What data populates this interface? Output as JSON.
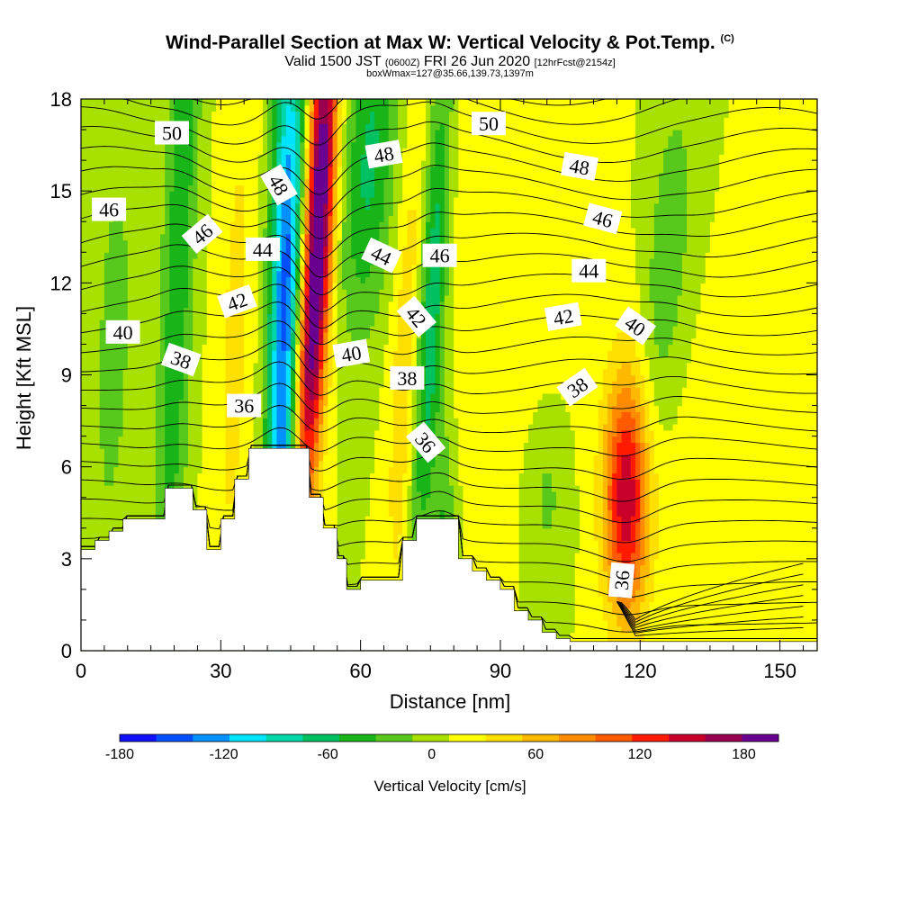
{
  "title": {
    "main": "Wind-Parallel Section at Max W: Vertical Velocity & Pot.Temp.",
    "copyright": "(C)",
    "valid_prefix": "Valid 1500 JST",
    "valid_utc": "(0600Z)",
    "valid_date": "FRI 26 Jun 2020",
    "forecast": "[12hrFcst@2154z]",
    "boxinfo": "boxWmax=127@35.66,139.73,1397m"
  },
  "colors": {
    "palette": [
      "#1010ff",
      "#0050ff",
      "#0090ff",
      "#00e4ff",
      "#00d6a8",
      "#00c060",
      "#18b418",
      "#58c81c",
      "#a8e000",
      "#ffff00",
      "#ffe000",
      "#ffb800",
      "#ff8c00",
      "#ff5a00",
      "#ff1a00",
      "#c8002a",
      "#9a0050",
      "#6a0090"
    ],
    "terrain": "#ffffff",
    "contour": "#000000"
  },
  "chart_data": {
    "type": "heatmap",
    "xlabel": "Distance [nm]",
    "ylabel": "Height [Kft MSL]",
    "xlim": [
      0,
      158
    ],
    "ylim": [
      0,
      18
    ],
    "xticks": [
      0,
      30,
      60,
      90,
      120,
      150
    ],
    "yticks": [
      0,
      3,
      6,
      9,
      12,
      15,
      18
    ],
    "colorbar": {
      "label": "Vertical Velocity [cm/s]",
      "min": -180,
      "max": 200,
      "step": 20,
      "tick_labels": [
        -180,
        -120,
        -60,
        0,
        60,
        120,
        180
      ]
    },
    "vertical_velocity_features": [
      {
        "x": 21,
        "y": 13,
        "sx": 2.5,
        "sy": 12,
        "slope": 0.25,
        "w": -55
      },
      {
        "x": 44,
        "y": 10,
        "sx": 2.6,
        "sy": 8,
        "slope": 0.12,
        "w": -165
      },
      {
        "x": 51,
        "y": 14,
        "sx": 2.2,
        "sy": 5.5,
        "slope": 0.3,
        "w": 200
      },
      {
        "x": 47,
        "y": 8,
        "sx": 2.5,
        "sy": 3,
        "slope": 0.1,
        "w": 70
      },
      {
        "x": 62,
        "y": 16,
        "sx": 4,
        "sy": 4,
        "slope": 0.4,
        "w": -65
      },
      {
        "x": 75,
        "y": 11,
        "sx": 2.2,
        "sy": 6,
        "slope": 0.35,
        "w": -85
      },
      {
        "x": 78,
        "y": 3,
        "sx": 1.6,
        "sy": 3,
        "slope": 0,
        "w": -45
      },
      {
        "x": 70,
        "y": 9,
        "sx": 2.5,
        "sy": 6,
        "slope": 0.3,
        "w": 40
      },
      {
        "x": 33,
        "y": 10,
        "sx": 3,
        "sy": 8,
        "slope": 0.2,
        "w": 25
      },
      {
        "x": 7,
        "y": 10,
        "sx": 4,
        "sy": 7,
        "slope": 0.2,
        "w": -25
      },
      {
        "x": 117,
        "y": 5,
        "sx": 3.4,
        "sy": 2.8,
        "slope": 0,
        "w": 135
      },
      {
        "x": 126,
        "y": 13,
        "sx": 3,
        "sy": 3.5,
        "slope": 0.45,
        "w": -40
      },
      {
        "x": 90,
        "y": 14,
        "sx": 10,
        "sy": 5,
        "slope": 0,
        "w": 18
      },
      {
        "x": 100,
        "y": 5,
        "sx": 3,
        "sy": 2,
        "slope": 0,
        "w": -25
      },
      {
        "x": 140,
        "y": 4,
        "sx": 12,
        "sy": 4,
        "slope": 0,
        "w": 10
      }
    ],
    "terrain_profile": [
      [
        0,
        3.3
      ],
      [
        3,
        3.6
      ],
      [
        6,
        3.9
      ],
      [
        9,
        4.3
      ],
      [
        18,
        5.3
      ],
      [
        24,
        4.6
      ],
      [
        27,
        3.3
      ],
      [
        30,
        4.3
      ],
      [
        33,
        5.6
      ],
      [
        36,
        6.6
      ],
      [
        42,
        6.6
      ],
      [
        45,
        6.6
      ],
      [
        49,
        5.0
      ],
      [
        52,
        4.0
      ],
      [
        55,
        3.0
      ],
      [
        57,
        2.0
      ],
      [
        60,
        2.3
      ],
      [
        63,
        2.3
      ],
      [
        66,
        2.3
      ],
      [
        69,
        3.6
      ],
      [
        72,
        4.3
      ],
      [
        78,
        4.3
      ],
      [
        81,
        3.0
      ],
      [
        84,
        2.6
      ],
      [
        87,
        2.3
      ],
      [
        90,
        2.0
      ],
      [
        93,
        1.3
      ],
      [
        96,
        1.0
      ],
      [
        99,
        0.6
      ],
      [
        102,
        0.4
      ],
      [
        105,
        0.3
      ],
      [
        158,
        0.3
      ]
    ],
    "potential_temperature_labels": [
      {
        "text": "50",
        "x": 19.5,
        "y": 16.9,
        "angle": 0
      },
      {
        "text": "50",
        "x": 87.5,
        "y": 17.2,
        "angle": 0
      },
      {
        "text": "48",
        "x": 42.5,
        "y": 15.2,
        "angle": 60
      },
      {
        "text": "48",
        "x": 65,
        "y": 16.2,
        "angle": -10
      },
      {
        "text": "48",
        "x": 107,
        "y": 15.8,
        "angle": 10
      },
      {
        "text": "46",
        "x": 6,
        "y": 14.4,
        "angle": 0
      },
      {
        "text": "46",
        "x": 26,
        "y": 13.6,
        "angle": -40
      },
      {
        "text": "46",
        "x": 77,
        "y": 12.9,
        "angle": 0
      },
      {
        "text": "46",
        "x": 112,
        "y": 14.1,
        "angle": 15
      },
      {
        "text": "44",
        "x": 39,
        "y": 13.1,
        "angle": 0
      },
      {
        "text": "44",
        "x": 64.5,
        "y": 12.9,
        "angle": 25
      },
      {
        "text": "44",
        "x": 109,
        "y": 12.4,
        "angle": 0
      },
      {
        "text": "42",
        "x": 33.5,
        "y": 11.4,
        "angle": -20
      },
      {
        "text": "42",
        "x": 72,
        "y": 10.9,
        "angle": 50
      },
      {
        "text": "42",
        "x": 103.5,
        "y": 10.9,
        "angle": -10
      },
      {
        "text": "40",
        "x": 9,
        "y": 10.4,
        "angle": 0
      },
      {
        "text": "40",
        "x": 58,
        "y": 9.7,
        "angle": -10
      },
      {
        "text": "40",
        "x": 119,
        "y": 10.6,
        "angle": 35
      },
      {
        "text": "38",
        "x": 21.5,
        "y": 9.5,
        "angle": 20
      },
      {
        "text": "38",
        "x": 70,
        "y": 8.9,
        "angle": 0
      },
      {
        "text": "38",
        "x": 106.5,
        "y": 8.6,
        "angle": -35
      },
      {
        "text": "36",
        "x": 35,
        "y": 8.0,
        "angle": 0
      },
      {
        "text": "36",
        "x": 74,
        "y": 6.8,
        "angle": 50
      },
      {
        "text": "36",
        "x": 116,
        "y": 2.3,
        "angle": -85
      }
    ]
  }
}
